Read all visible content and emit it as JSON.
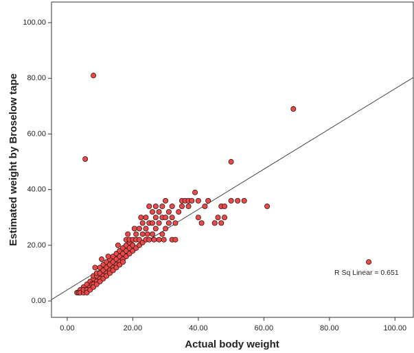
{
  "chart_data": {
    "type": "scatter",
    "x_label": "Actual body weight",
    "y_label": "Estimated weight by Broselow tape",
    "annotation": "R Sq Linear = 0.651",
    "color": "#e84a4a",
    "edge_color": "#3a1010",
    "xlim": [
      -4.8,
      105.6
    ],
    "ylim": [
      -5.9,
      107.4
    ],
    "xticks": [
      {
        "value": 0,
        "label": "0.00"
      },
      {
        "value": 20,
        "label": "20.00"
      },
      {
        "value": 40,
        "label": "40.00"
      },
      {
        "value": 60,
        "label": "60.00"
      },
      {
        "value": 80,
        "label": "80.00"
      },
      {
        "value": 100,
        "label": "100.00"
      }
    ],
    "yticks": [
      {
        "value": 0,
        "label": "0.00"
      },
      {
        "value": 20,
        "label": "20.00"
      },
      {
        "value": 40,
        "label": "40.00"
      },
      {
        "value": 60,
        "label": "60.00"
      },
      {
        "value": 80,
        "label": "80.00"
      },
      {
        "value": 100,
        "label": "100.00"
      }
    ],
    "grid": false,
    "fit_line": {
      "x": [
        -4.8,
        105.6
      ],
      "y": [
        0.5,
        80.3
      ]
    },
    "x": [
      3,
      3.5,
      4,
      4,
      5,
      5,
      5,
      6,
      6,
      6,
      7,
      7,
      7,
      7.5,
      8,
      8,
      8,
      8,
      9,
      9,
      9,
      9,
      10,
      10,
      10,
      10,
      11,
      11,
      11,
      11,
      12,
      12,
      12,
      12,
      13,
      13,
      13,
      13,
      14,
      14,
      14,
      14,
      15,
      15,
      15,
      15,
      16,
      16,
      16,
      16,
      17,
      17,
      17,
      17,
      18,
      18,
      18,
      18,
      19,
      19,
      19,
      19,
      20,
      20,
      20,
      21,
      21,
      21,
      22,
      22,
      22,
      23,
      23,
      23,
      24,
      24,
      24,
      25,
      25,
      25,
      26,
      26,
      26,
      27,
      27,
      27,
      28,
      28,
      28,
      29,
      29,
      29,
      30,
      30,
      30,
      31,
      31,
      32,
      32,
      32,
      33,
      33,
      34,
      35,
      35,
      36,
      37,
      37,
      38,
      39,
      40,
      40,
      41,
      42,
      43,
      8.5,
      10.5,
      12.5,
      15.5,
      18.5,
      20.5,
      22.5,
      24.5,
      26.5,
      29.5,
      8,
      5.5,
      69,
      50,
      92,
      61,
      54,
      52,
      50,
      47,
      48,
      47,
      45,
      46,
      48
    ],
    "y": [
      3,
      3,
      4,
      3,
      3,
      5,
      4,
      4,
      6,
      3,
      5,
      7,
      4,
      6,
      8,
      6,
      9,
      5,
      7,
      9,
      10,
      6,
      8,
      10,
      12,
      7,
      9,
      11,
      13,
      8,
      10,
      12,
      14,
      9,
      11,
      13,
      15,
      10,
      12,
      14,
      16,
      11,
      13,
      15,
      17,
      12,
      14,
      16,
      18,
      13,
      15,
      17,
      19,
      14,
      16,
      18,
      20,
      22,
      17,
      19,
      21,
      22,
      18,
      20,
      22,
      19,
      22,
      24,
      20,
      22,
      26,
      21,
      24,
      28,
      22,
      26,
      30,
      22,
      28,
      34,
      24,
      28,
      32,
      26,
      30,
      34,
      22,
      28,
      32,
      24,
      30,
      34,
      26,
      30,
      36,
      28,
      32,
      22,
      30,
      34,
      22,
      28,
      32,
      36,
      34,
      36,
      34,
      36,
      36,
      39,
      36,
      30,
      28,
      34,
      36,
      12,
      15,
      16,
      20,
      24,
      26,
      30,
      24,
      22,
      22,
      81,
      51,
      69,
      50,
      14,
      34,
      36,
      36,
      36,
      34,
      30,
      28,
      28,
      30,
      34
    ]
  }
}
